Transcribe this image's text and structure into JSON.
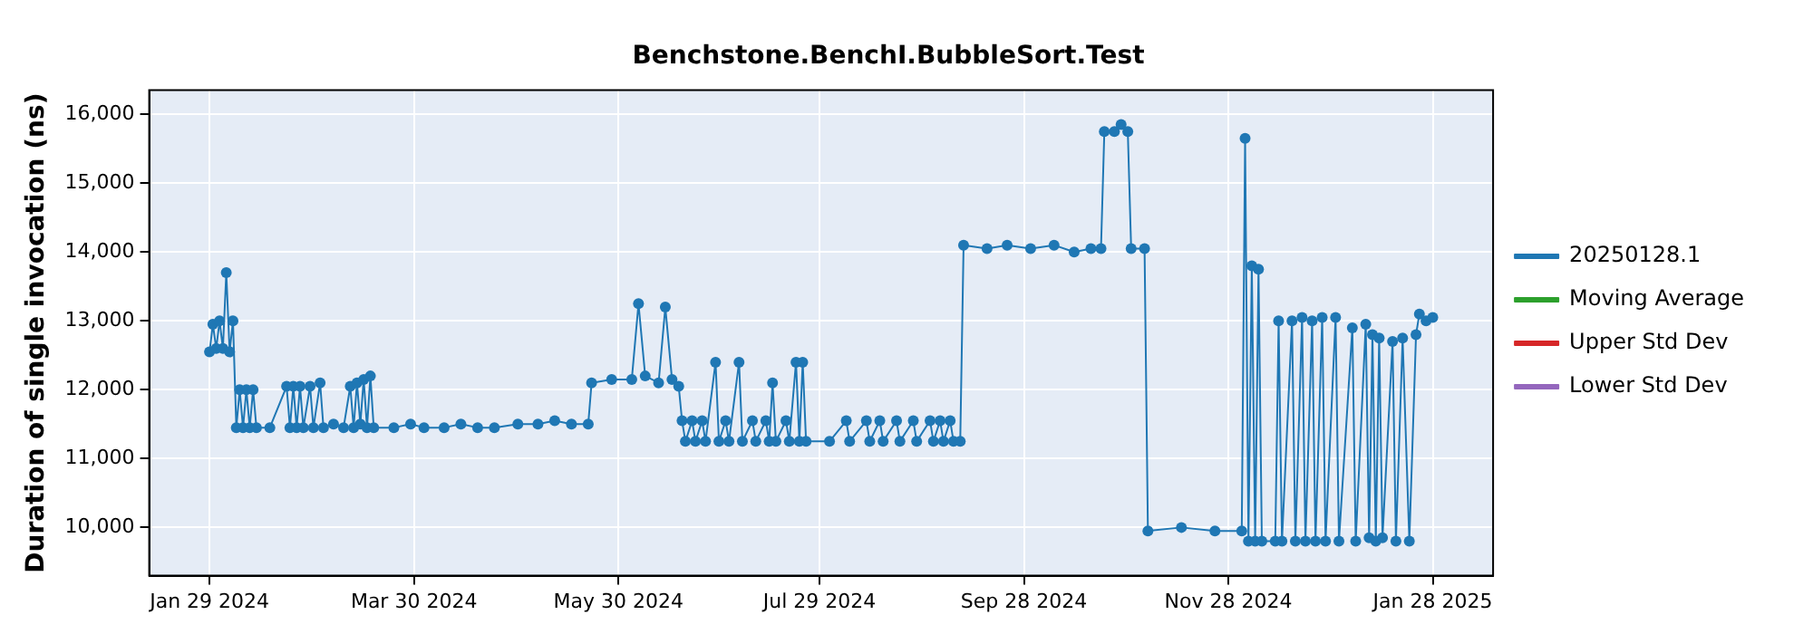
{
  "chart_data": {
    "type": "line",
    "title": "Benchstone.BenchI.BubbleSort.Test",
    "ylabel": "Duration of single invocation (ns)",
    "xlim": [
      "2024-01-11",
      "2025-02-15"
    ],
    "xticks": [
      {
        "value": "2024-01-29",
        "label": "Jan 29 2024"
      },
      {
        "value": "2024-03-30",
        "label": "Mar 30 2024"
      },
      {
        "value": "2024-05-30",
        "label": "May 30 2024"
      },
      {
        "value": "2024-07-29",
        "label": "Jul 29 2024"
      },
      {
        "value": "2024-09-28",
        "label": "Sep 28 2024"
      },
      {
        "value": "2024-11-28",
        "label": "Nov 28 2024"
      },
      {
        "value": "2025-01-28",
        "label": "Jan 28 2025"
      }
    ],
    "ylim": [
      9300,
      16350
    ],
    "yticks": [
      {
        "value": 10000,
        "label": "10,000"
      },
      {
        "value": 11000,
        "label": "11,000"
      },
      {
        "value": 12000,
        "label": "12,000"
      },
      {
        "value": 13000,
        "label": "13,000"
      },
      {
        "value": 14000,
        "label": "14,000"
      },
      {
        "value": 15000,
        "label": "15,000"
      },
      {
        "value": 16000,
        "label": "16,000"
      }
    ],
    "grid": true,
    "legend": "right",
    "marker": "circle",
    "line_style": "solid",
    "series": [
      {
        "name": "20250128.1",
        "color": "#1f77b4",
        "x": [
          "2024-01-29",
          "2024-01-30",
          "2024-01-31",
          "2024-02-01",
          "2024-02-02",
          "2024-02-03",
          "2024-02-04",
          "2024-02-05",
          "2024-02-06",
          "2024-02-07",
          "2024-02-08",
          "2024-02-09",
          "2024-02-10",
          "2024-02-11",
          "2024-02-12",
          "2024-02-16",
          "2024-02-21",
          "2024-02-22",
          "2024-02-23",
          "2024-02-24",
          "2024-02-25",
          "2024-02-26",
          "2024-02-28",
          "2024-02-29",
          "2024-03-02",
          "2024-03-03",
          "2024-03-06",
          "2024-03-09",
          "2024-03-11",
          "2024-03-12",
          "2024-03-13",
          "2024-03-14",
          "2024-03-15",
          "2024-03-16",
          "2024-03-17",
          "2024-03-18",
          "2024-03-24",
          "2024-03-29",
          "2024-04-02",
          "2024-04-08",
          "2024-04-13",
          "2024-04-18",
          "2024-04-23",
          "2024-04-30",
          "2024-05-06",
          "2024-05-11",
          "2024-05-16",
          "2024-05-21",
          "2024-05-22",
          "2024-05-28",
          "2024-06-03",
          "2024-06-05",
          "2024-06-07",
          "2024-06-11",
          "2024-06-13",
          "2024-06-15",
          "2024-06-17",
          "2024-06-18",
          "2024-06-19",
          "2024-06-21",
          "2024-06-22",
          "2024-06-24",
          "2024-06-25",
          "2024-06-28",
          "2024-06-29",
          "2024-07-01",
          "2024-07-02",
          "2024-07-05",
          "2024-07-06",
          "2024-07-09",
          "2024-07-10",
          "2024-07-13",
          "2024-07-14",
          "2024-07-15",
          "2024-07-16",
          "2024-07-19",
          "2024-07-20",
          "2024-07-22",
          "2024-07-23",
          "2024-07-24",
          "2024-07-25",
          "2024-08-01",
          "2024-08-06",
          "2024-08-07",
          "2024-08-12",
          "2024-08-13",
          "2024-08-16",
          "2024-08-17",
          "2024-08-21",
          "2024-08-22",
          "2024-08-26",
          "2024-08-27",
          "2024-08-31",
          "2024-09-01",
          "2024-09-03",
          "2024-09-04",
          "2024-09-06",
          "2024-09-07",
          "2024-09-09",
          "2024-09-10",
          "2024-09-17",
          "2024-09-23",
          "2024-09-30",
          "2024-10-07",
          "2024-10-13",
          "2024-10-18",
          "2024-10-21",
          "2024-10-22",
          "2024-10-25",
          "2024-10-27",
          "2024-10-29",
          "2024-10-30",
          "2024-11-03",
          "2024-11-04",
          "2024-11-14",
          "2024-11-24",
          "2024-12-02",
          "2024-12-03",
          "2024-12-04",
          "2024-12-05",
          "2024-12-06",
          "2024-12-07",
          "2024-12-08",
          "2024-12-12",
          "2024-12-13",
          "2024-12-14",
          "2024-12-17",
          "2024-12-18",
          "2024-12-20",
          "2024-12-21",
          "2024-12-23",
          "2024-12-24",
          "2024-12-26",
          "2024-12-27",
          "2024-12-30",
          "2024-12-31",
          "2025-01-04",
          "2025-01-05",
          "2025-01-08",
          "2025-01-09",
          "2025-01-10",
          "2025-01-11",
          "2025-01-12",
          "2025-01-13",
          "2025-01-16",
          "2025-01-17",
          "2025-01-19",
          "2025-01-21",
          "2025-01-23",
          "2025-01-24",
          "2025-01-26",
          "2025-01-28"
        ],
        "values": [
          12550,
          12950,
          12600,
          13000,
          12600,
          13700,
          12550,
          13000,
          11450,
          12000,
          11450,
          12000,
          11450,
          12000,
          11450,
          11450,
          12050,
          11450,
          12050,
          11450,
          12050,
          11450,
          12050,
          11450,
          12100,
          11450,
          11500,
          11450,
          12050,
          11450,
          12100,
          11500,
          12150,
          11450,
          12200,
          11450,
          11450,
          11500,
          11450,
          11450,
          11500,
          11450,
          11450,
          11500,
          11500,
          11550,
          11500,
          11500,
          12100,
          12150,
          12150,
          13250,
          12200,
          12100,
          13200,
          12150,
          12050,
          11550,
          11250,
          11550,
          11250,
          11550,
          11250,
          12400,
          11250,
          11550,
          11250,
          12400,
          11250,
          11550,
          11250,
          11550,
          11250,
          12100,
          11250,
          11550,
          11250,
          12400,
          11250,
          12400,
          11250,
          11250,
          11550,
          11250,
          11550,
          11250,
          11550,
          11250,
          11550,
          11250,
          11550,
          11250,
          11550,
          11250,
          11550,
          11250,
          11550,
          11250,
          11250,
          14100,
          14050,
          14100,
          14050,
          14100,
          14000,
          14050,
          14050,
          15750,
          15750,
          15850,
          15750,
          14050,
          14050,
          9950,
          10000,
          9950,
          9950,
          15650,
          9800,
          13800,
          9800,
          13750,
          9800,
          9800,
          13000,
          9800,
          13000,
          9800,
          13050,
          9800,
          13000,
          9800,
          13050,
          9800,
          13050,
          9800,
          12900,
          9800,
          12950,
          9850,
          12800,
          9800,
          12750,
          9850,
          12700,
          9800,
          12750,
          9800,
          12800,
          13100,
          13000,
          13050
        ]
      },
      {
        "name": "Moving Average",
        "color": "#2ca02c"
      },
      {
        "name": "Upper Std Dev",
        "color": "#d62728"
      },
      {
        "name": "Lower Std Dev",
        "color": "#9467bd"
      }
    ]
  }
}
